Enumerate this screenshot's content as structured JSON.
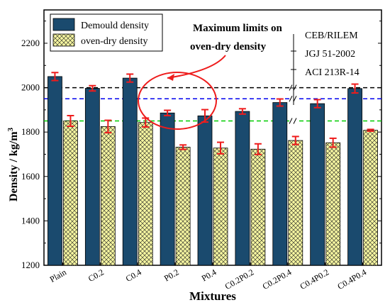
{
  "chart_data": {
    "type": "bar",
    "title": "",
    "xlabel": "Mixtures",
    "ylabel": "Density / kg/m",
    "ylabel_sup": "3",
    "ylim": [
      1200,
      2350
    ],
    "yticks": [
      "1200",
      "1400",
      "1600",
      "1800",
      "2000",
      "2200"
    ],
    "categories": [
      "Plain",
      "C0.2",
      "C0.4",
      "P0.2",
      "P0.4",
      "C0.2P0.2",
      "C0.2P0.4",
      "C0.4P0.2",
      "C0.4P0.4"
    ],
    "series": [
      {
        "name": "Demould density",
        "color": "#1a4a6e",
        "values": [
          2050,
          1997,
          2043,
          1886,
          1873,
          1893,
          1933,
          1928,
          1996
        ],
        "errors": [
          18,
          12,
          18,
          12,
          28,
          12,
          16,
          18,
          20
        ]
      },
      {
        "name": "oven-dry density",
        "color": "#f5f5a0",
        "pattern": "crosshatch",
        "values": [
          1850,
          1825,
          1843,
          1732,
          1728,
          1723,
          1762,
          1752,
          1808
        ],
        "errors": [
          24,
          28,
          20,
          10,
          26,
          24,
          18,
          20,
          4
        ]
      }
    ],
    "limits": [
      {
        "label": "CEB/RILEM",
        "value": 2000,
        "color": "#000000"
      },
      {
        "label": "JGJ 51-2002",
        "value": 1950,
        "color": "#0000ee"
      },
      {
        "label": "ACI 213R-14",
        "value": 1850,
        "color": "#00cc00"
      }
    ],
    "annotation": {
      "line1": "Maximum limits on",
      "line2": "oven-dry density"
    },
    "legend_position": "top-left"
  }
}
